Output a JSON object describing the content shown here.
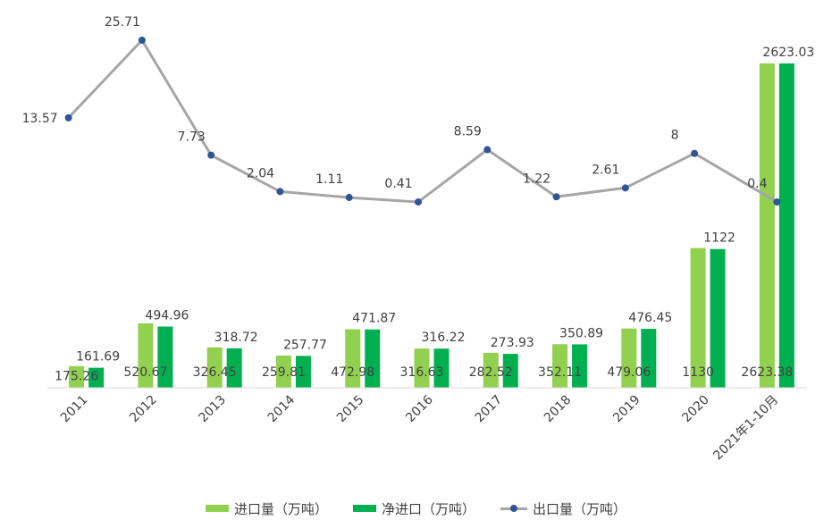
{
  "colors": {
    "import": "#92D050",
    "net_import": "#00B050",
    "export_line": "#A6A6A6",
    "export_marker": "#2F5597"
  },
  "chart_data": {
    "type": "bar+line",
    "categories": [
      "2011",
      "2012",
      "2013",
      "2014",
      "2015",
      "2016",
      "2017",
      "2018",
      "2019",
      "2020",
      "2021年1-10月"
    ],
    "series": [
      {
        "name": "进口量（万吨）",
        "type": "bar",
        "values": [
          175.26,
          520.67,
          326.45,
          259.81,
          472.98,
          316.63,
          282.52,
          352.11,
          479.06,
          1130,
          2623.38
        ],
        "labels": [
          "175.26",
          "520.67",
          "326.45",
          "259.81",
          "472.98",
          "316.63",
          "282.52",
          "352.11",
          "479.06",
          "1130",
          "2623.38"
        ]
      },
      {
        "name": "净进口（万吨）",
        "type": "bar",
        "values": [
          161.69,
          494.96,
          318.72,
          257.77,
          471.87,
          316.22,
          273.93,
          350.89,
          476.45,
          1122,
          2623.03
        ],
        "labels": [
          "161.69",
          "494.96",
          "318.72",
          "257.77",
          "471.87",
          "316.22",
          "273.93",
          "350.89",
          "476.45",
          "1122",
          "2623.03"
        ]
      },
      {
        "name": "出口量（万吨）",
        "type": "line",
        "axis": "secondary",
        "values": [
          13.57,
          25.71,
          7.73,
          2.04,
          1.11,
          0.41,
          8.59,
          1.22,
          2.61,
          8,
          0.4
        ],
        "labels": [
          "13.57",
          "25.71",
          "7.73",
          "2.04",
          "1.11",
          "0.41",
          "8.59",
          "1.22",
          "2.61",
          "8",
          "0.4"
        ]
      }
    ],
    "ylim": [
      0,
      2623.03
    ],
    "y2lim": [
      0,
      30
    ],
    "legend": "bottom",
    "grid": false
  }
}
